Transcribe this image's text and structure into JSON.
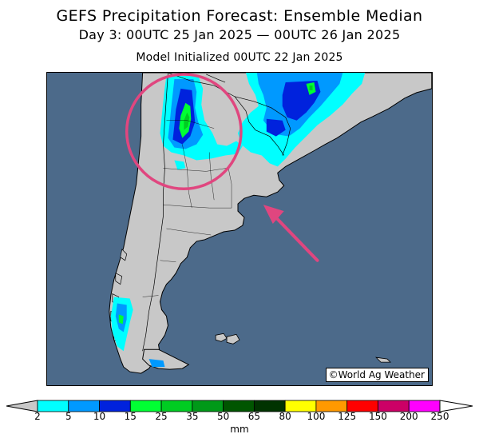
{
  "title_line1": "GEFS Precipitation Forecast: Ensemble Median",
  "title_line2": "Day 3: 00UTC 25 Jan 2025 — 00UTC 26 Jan 2025",
  "title_line3": "Model Initialized 00UTC 22 Jan 2025",
  "credit": "©World Ag Weather",
  "colorbar": {
    "unit": "mm",
    "ticks": [
      "2",
      "5",
      "10",
      "15",
      "25",
      "35",
      "50",
      "65",
      "80",
      "100",
      "125",
      "150",
      "200",
      "250"
    ],
    "colors": [
      "#00ffff",
      "#0099ff",
      "#0022dd",
      "#00ff33",
      "#00cc22",
      "#009918",
      "#005500",
      "#003300",
      "#ffff00",
      "#ff9900",
      "#ff0000",
      "#cc0066",
      "#ff00ff",
      "#9955cc"
    ],
    "under_color": "#c8c8c8",
    "over_color": "#ffffff"
  },
  "map": {
    "ocean_color": "#4c6a8a",
    "land_color": "#c8c8c8",
    "highlight_circle_color": "#e0467f",
    "arrow_color": "#e0467f"
  }
}
